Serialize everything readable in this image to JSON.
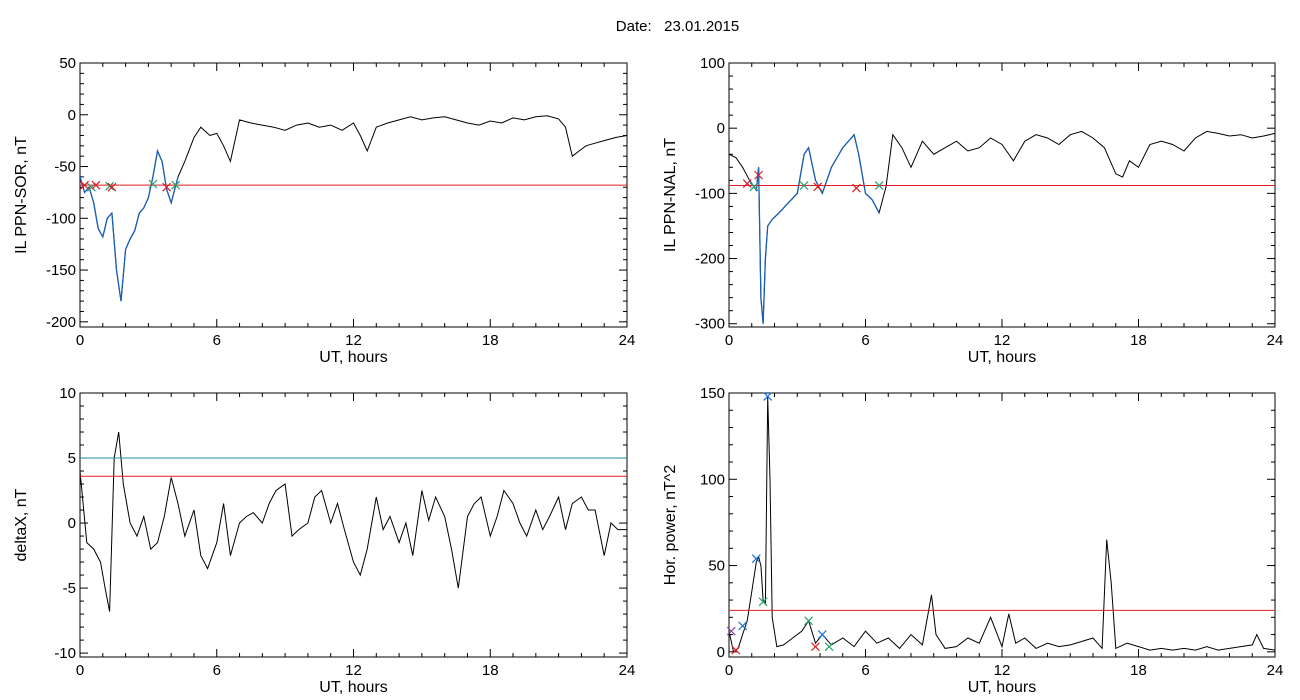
{
  "page_title": {
    "label": "Date:",
    "value": "23.01.2015"
  },
  "colors": {
    "trace": "#000000",
    "highlight": "#1a5fb4",
    "threshold": "#e01b24",
    "secondary_threshold": "#1f8f99",
    "marker_red": "#e01b24",
    "marker_green": "#26a269",
    "marker_blue": "#1c71d8",
    "marker_purple": "#813d9c"
  },
  "chart_data": [
    {
      "type": "line",
      "ylabel": "IL PPN-SOR, nT",
      "xlabel": "UT, hours",
      "xlim": [
        0,
        24
      ],
      "xticks": [
        0,
        6,
        12,
        18,
        24
      ],
      "ylim": [
        -205,
        50
      ],
      "yticks": [
        -200,
        -150,
        -100,
        -50,
        0,
        50
      ],
      "grid": false,
      "threshold": -68,
      "series": [
        {
          "x": [
            0,
            0.2,
            0.4,
            0.6,
            0.8,
            1.0,
            1.2,
            1.4,
            1.6,
            1.8,
            2.0,
            2.2,
            2.4,
            2.6,
            2.8,
            3.0,
            3.2,
            3.4,
            3.6,
            3.8,
            4.0,
            4.3,
            4.6,
            5.0,
            5.3,
            5.7,
            6.0,
            6.3,
            6.6,
            7.0,
            7.5,
            8.0,
            8.5,
            9.0,
            9.5,
            10.0,
            10.5,
            11.0,
            11.5,
            12.0,
            12.3,
            12.6,
            13.0,
            13.5,
            14.0,
            14.5,
            15.0,
            15.5,
            16.0,
            16.5,
            17.0,
            17.5,
            18.0,
            18.5,
            19.0,
            19.5,
            20.0,
            20.5,
            21.0,
            21.3,
            21.6,
            21.9,
            22.2,
            22.5,
            23.0,
            23.5,
            24.0
          ],
          "y": [
            -60,
            -75,
            -70,
            -85,
            -110,
            -118,
            -100,
            -95,
            -150,
            -180,
            -130,
            -120,
            -112,
            -95,
            -90,
            -80,
            -60,
            -35,
            -45,
            -72,
            -85,
            -60,
            -45,
            -22,
            -12,
            -20,
            -18,
            -30,
            -45,
            -5,
            -8,
            -10,
            -12,
            -15,
            -10,
            -8,
            -12,
            -10,
            -15,
            -8,
            -20,
            -35,
            -12,
            -8,
            -5,
            -2,
            -5,
            -3,
            -2,
            -5,
            -8,
            -10,
            -6,
            -8,
            -3,
            -5,
            -2,
            -1,
            -4,
            -12,
            -40,
            -35,
            -30,
            -28,
            -25,
            -22,
            -20
          ]
        }
      ],
      "highlight_range": [
        0,
        4.3
      ],
      "markers": [
        {
          "x": 0.2,
          "y": -68,
          "color": "red"
        },
        {
          "x": 0.5,
          "y": -70,
          "color": "green"
        },
        {
          "x": 0.7,
          "y": -68,
          "color": "red"
        },
        {
          "x": 1.3,
          "y": -69,
          "color": "green"
        },
        {
          "x": 1.4,
          "y": -70,
          "color": "red"
        },
        {
          "x": 3.2,
          "y": -67,
          "color": "green"
        },
        {
          "x": 3.8,
          "y": -70,
          "color": "red"
        },
        {
          "x": 4.2,
          "y": -68,
          "color": "green"
        }
      ]
    },
    {
      "type": "line",
      "ylabel": "IL PPN-NAL, nT",
      "xlabel": "UT, hours",
      "xlim": [
        0,
        24
      ],
      "xticks": [
        0,
        6,
        12,
        18,
        24
      ],
      "ylim": [
        -305,
        100
      ],
      "yticks": [
        -300,
        -200,
        -100,
        0,
        100
      ],
      "grid": false,
      "threshold": -88,
      "series": [
        {
          "x": [
            0,
            0.3,
            0.6,
            0.9,
            1.1,
            1.2,
            1.3,
            1.4,
            1.5,
            1.6,
            1.7,
            1.9,
            2.2,
            2.6,
            3.0,
            3.3,
            3.5,
            3.8,
            4.1,
            4.5,
            5.0,
            5.5,
            5.7,
            6.0,
            6.3,
            6.6,
            6.9,
            7.2,
            7.6,
            8.0,
            8.5,
            9.0,
            9.5,
            10.0,
            10.5,
            11.0,
            11.5,
            12.0,
            12.5,
            13.0,
            13.5,
            14.0,
            14.5,
            15.0,
            15.5,
            16.0,
            16.5,
            17.0,
            17.3,
            17.6,
            18.0,
            18.5,
            19.0,
            19.5,
            20.0,
            20.5,
            21.0,
            21.5,
            22.0,
            22.5,
            23.0,
            23.5,
            24.0
          ],
          "y": [
            -40,
            -45,
            -60,
            -80,
            -90,
            -95,
            -60,
            -260,
            -300,
            -200,
            -150,
            -140,
            -130,
            -115,
            -100,
            -40,
            -30,
            -80,
            -100,
            -60,
            -30,
            -10,
            -40,
            -100,
            -110,
            -130,
            -90,
            -10,
            -30,
            -60,
            -20,
            -40,
            -30,
            -20,
            -35,
            -30,
            -15,
            -25,
            -50,
            -20,
            -10,
            -15,
            -25,
            -10,
            -5,
            -15,
            -30,
            -70,
            -75,
            -50,
            -60,
            -25,
            -20,
            -25,
            -35,
            -15,
            -5,
            -8,
            -12,
            -10,
            -15,
            -12,
            -8
          ]
        }
      ],
      "highlight_range": [
        0.9,
        6.6
      ],
      "markers": [
        {
          "x": 0.8,
          "y": -85,
          "color": "red"
        },
        {
          "x": 1.1,
          "y": -90,
          "color": "green"
        },
        {
          "x": 1.3,
          "y": -72,
          "color": "red"
        },
        {
          "x": 3.3,
          "y": -88,
          "color": "green"
        },
        {
          "x": 3.9,
          "y": -90,
          "color": "red"
        },
        {
          "x": 5.6,
          "y": -92,
          "color": "red"
        },
        {
          "x": 6.6,
          "y": -88,
          "color": "green"
        }
      ]
    },
    {
      "type": "line",
      "ylabel": "deltaX, nT",
      "xlabel": "UT, hours",
      "xlim": [
        0,
        24
      ],
      "xticks": [
        0,
        6,
        12,
        18,
        24
      ],
      "ylim": [
        -10.3,
        10
      ],
      "yticks": [
        -10,
        -5,
        0,
        5,
        10
      ],
      "grid": false,
      "threshold": 3.6,
      "secondary_threshold": 5.0,
      "series": [
        {
          "x": [
            0,
            0.3,
            0.6,
            0.9,
            1.1,
            1.3,
            1.5,
            1.7,
            1.9,
            2.2,
            2.5,
            2.8,
            3.1,
            3.4,
            3.7,
            4.0,
            4.3,
            4.6,
            5.0,
            5.3,
            5.6,
            6.0,
            6.3,
            6.6,
            7.0,
            7.3,
            7.6,
            8.0,
            8.3,
            8.6,
            9.0,
            9.3,
            9.6,
            10.0,
            10.3,
            10.6,
            11.0,
            11.3,
            11.6,
            12.0,
            12.3,
            12.6,
            13.0,
            13.3,
            13.6,
            14.0,
            14.3,
            14.6,
            15.0,
            15.3,
            15.6,
            16.0,
            16.3,
            16.6,
            17.0,
            17.3,
            17.6,
            18.0,
            18.3,
            18.6,
            19.0,
            19.3,
            19.6,
            20.0,
            20.3,
            20.6,
            21.0,
            21.3,
            21.6,
            22.0,
            22.3,
            22.6,
            23.0,
            23.3,
            23.6,
            24.0
          ],
          "y": [
            4,
            -1.5,
            -2,
            -3,
            -5,
            -6.8,
            5,
            7,
            3,
            0,
            -1,
            0.5,
            -2,
            -1.5,
            0.5,
            3.5,
            1.5,
            -1,
            1,
            -2.5,
            -3.5,
            -1.5,
            1.5,
            -2.5,
            0,
            0.5,
            0.8,
            0,
            1.5,
            2.5,
            3,
            -1,
            -0.5,
            0,
            2,
            2.5,
            0,
            1.5,
            -0.5,
            -3,
            -4,
            -2,
            2,
            -0.5,
            0.5,
            -1.5,
            0,
            -2.5,
            2.5,
            0.2,
            2,
            0.5,
            -2,
            -5,
            0.5,
            1.5,
            2,
            -1,
            0.5,
            2.5,
            1.5,
            0,
            -1,
            1,
            -0.5,
            0.5,
            2,
            -0.5,
            1.5,
            2,
            1,
            1,
            -2.5,
            0,
            -0.5,
            -0.5
          ]
        }
      ]
    },
    {
      "type": "line",
      "ylabel": "Hor. power, nT^2",
      "xlabel": "UT, hours",
      "xlim": [
        0,
        24
      ],
      "xticks": [
        0,
        6,
        12,
        18,
        24
      ],
      "ylim": [
        -3,
        150
      ],
      "yticks": [
        0,
        50,
        100,
        150
      ],
      "grid": false,
      "threshold": 24,
      "series": [
        {
          "x": [
            0,
            0.2,
            0.4,
            0.6,
            0.8,
            1.0,
            1.2,
            1.3,
            1.4,
            1.5,
            1.6,
            1.7,
            1.8,
            1.9,
            2.1,
            2.4,
            2.8,
            3.2,
            3.5,
            3.8,
            4.1,
            4.5,
            5.0,
            5.5,
            6.0,
            6.5,
            7.0,
            7.5,
            8.0,
            8.5,
            8.9,
            9.1,
            9.5,
            10.0,
            10.5,
            11.0,
            11.5,
            12.0,
            12.3,
            12.6,
            13.0,
            13.5,
            14.0,
            14.5,
            15.0,
            15.5,
            16.0,
            16.4,
            16.6,
            16.8,
            17.0,
            17.5,
            18.0,
            18.5,
            19.0,
            19.5,
            20.0,
            20.5,
            21.0,
            21.5,
            22.0,
            22.5,
            23.0,
            23.2,
            23.5,
            24.0
          ],
          "y": [
            12,
            0,
            2,
            10,
            18,
            35,
            52,
            55,
            50,
            30,
            28,
            148,
            100,
            20,
            3,
            4,
            8,
            12,
            18,
            5,
            10,
            4,
            8,
            3,
            12,
            5,
            8,
            2,
            10,
            4,
            33,
            10,
            2,
            3,
            8,
            5,
            20,
            3,
            22,
            5,
            8,
            2,
            5,
            3,
            4,
            6,
            8,
            2,
            65,
            40,
            2,
            5,
            3,
            1,
            2,
            1,
            2,
            1,
            3,
            1,
            2,
            3,
            4,
            10,
            2,
            1
          ]
        }
      ],
      "markers": [
        {
          "x": 0.1,
          "y": 12,
          "color": "purple"
        },
        {
          "x": 0.3,
          "y": 1,
          "color": "red"
        },
        {
          "x": 0.6,
          "y": 15,
          "color": "blue"
        },
        {
          "x": 1.2,
          "y": 54,
          "color": "blue"
        },
        {
          "x": 1.5,
          "y": 29,
          "color": "green"
        },
        {
          "x": 1.7,
          "y": 148,
          "color": "blue"
        },
        {
          "x": 3.5,
          "y": 18,
          "color": "green"
        },
        {
          "x": 3.8,
          "y": 3,
          "color": "red"
        },
        {
          "x": 4.1,
          "y": 10,
          "color": "blue"
        },
        {
          "x": 4.4,
          "y": 3,
          "color": "green"
        }
      ]
    }
  ]
}
